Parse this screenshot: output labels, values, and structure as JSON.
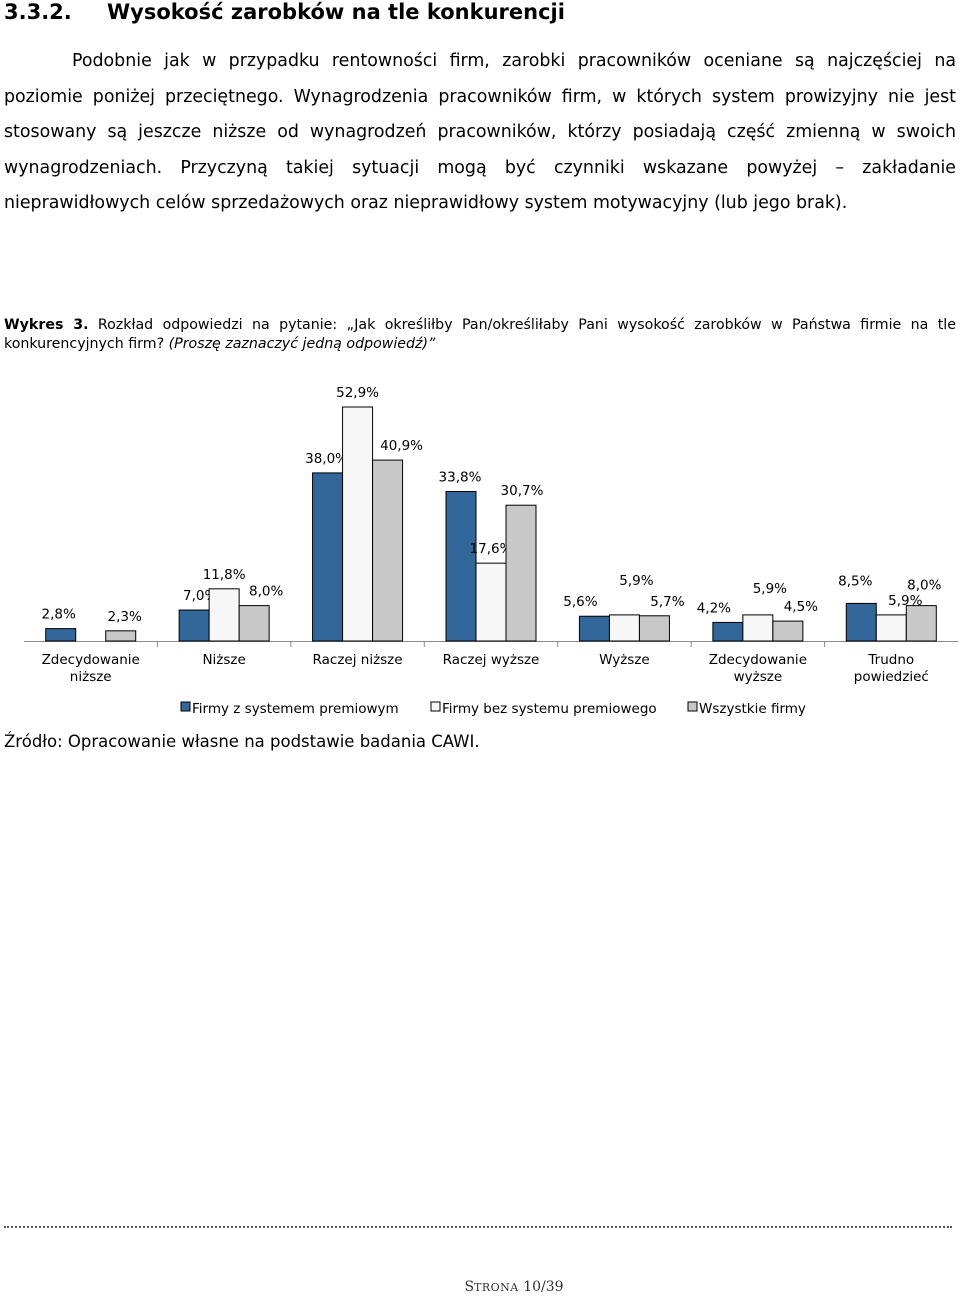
{
  "section": {
    "number": "3.3.2.",
    "title": "Wysokość zarobków na tle konkurencji"
  },
  "paragraph": "Podobnie jak w przypadku rentowności firm, zarobki pracowników oceniane są najczęściej na poziomie poniżej przeciętnego. Wynagrodzenia pracowników firm, w których system prowizyjny nie jest stosowany są jeszcze niższe od wynagrodzeń pracowników, którzy posiadają część zmienną w swoich wynagrodzeniach. Przyczyną takiej sytuacji mogą być czynniki wskazane powyżej – zakładanie nieprawidłowych celów sprzedażowych oraz nieprawidłowy system motywacyjny (lub jego brak).",
  "caption": {
    "label": "Wykres 3.",
    "text": " Rozkład odpowiedzi na pytanie: „Jak określiłby Pan/określiłaby Pani wysokość zarobków w Państwa firmie na tle konkurencyjnych firm? ",
    "instruction": "(Proszę zaznaczyć jedną odpowiedź)”"
  },
  "chart_data": {
    "type": "bar",
    "categories": [
      "Zdecydowanie niższe",
      "Niższe",
      "Raczej niższe",
      "Raczej wyższe",
      "Wyższe",
      "Zdecydowanie wyższe",
      "Trudno powiedzieć"
    ],
    "series": [
      {
        "name": "Firmy z systemem premiowym",
        "values": [
          2.8,
          7.0,
          38.0,
          33.8,
          5.6,
          4.2,
          8.5
        ]
      },
      {
        "name": "Firmy bez systemu premiowego",
        "values": [
          null,
          11.8,
          52.9,
          17.6,
          5.9,
          5.9,
          5.9
        ]
      },
      {
        "name": "Wszystkie firmy",
        "values": [
          2.3,
          8.0,
          40.9,
          30.7,
          5.7,
          4.5,
          8.0
        ]
      }
    ],
    "data_labels": [
      [
        "2,8%",
        "7,0%",
        "38,0%",
        "33,8%",
        "5,6%",
        "4,2%",
        "8,5%"
      ],
      [
        "",
        "11,8%",
        "52,9%",
        "17,6%",
        "5,9%",
        "5,9%",
        "5,9%"
      ],
      [
        "2,3%",
        "8,0%",
        "40,9%",
        "30,7%",
        "5,7%",
        "4,5%",
        "8,0%"
      ]
    ],
    "colors": [
      "#336699",
      "#F7F7F7",
      "#C8C8C8"
    ],
    "ylim": [
      0,
      55
    ],
    "grid": false,
    "legend": "bottom"
  },
  "source": "Źródło: Opracowanie własne na podstawie badania CAWI.",
  "footer": {
    "prefix": "S",
    "word": "TRONA",
    "page": "10/39"
  }
}
